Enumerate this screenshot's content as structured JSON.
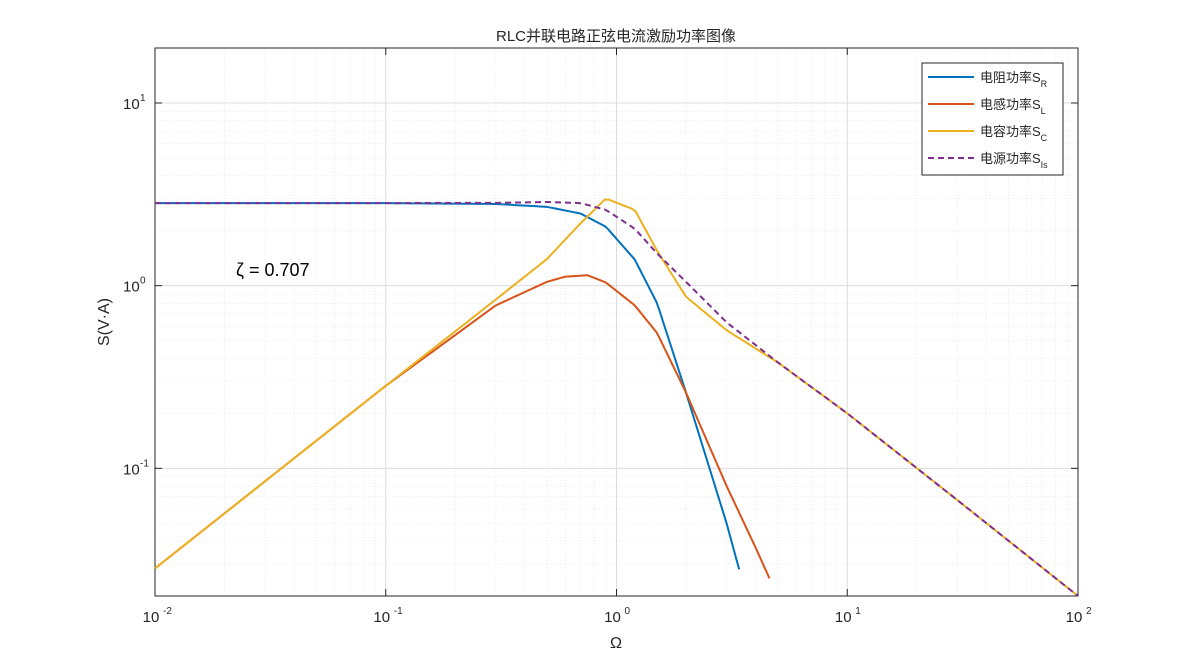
{
  "chart_data": {
    "type": "line",
    "title": "RLC并联电路正弦电流激励功率图像",
    "xlabel": "Ω",
    "ylabel": "S(V·A)",
    "xscale": "log",
    "yscale": "log",
    "xlim": [
      0.01,
      100
    ],
    "ylim": [
      0.02,
      20
    ],
    "grid": true,
    "legend_position": "top-right",
    "annotation": "ζ = 0.707",
    "xticks": [
      {
        "base": "10",
        "exp": "-2",
        "value": 0.01
      },
      {
        "base": "10",
        "exp": "-1",
        "value": 0.1
      },
      {
        "base": "10",
        "exp": "0",
        "value": 1
      },
      {
        "base": "10",
        "exp": "1",
        "value": 10
      },
      {
        "base": "10",
        "exp": "2",
        "value": 100
      }
    ],
    "yticks": [
      {
        "base": "10",
        "exp": "-1",
        "value": 0.1
      },
      {
        "base": "10",
        "exp": "0",
        "value": 1
      },
      {
        "base": "10",
        "exp": "1",
        "value": 10
      }
    ],
    "series": [
      {
        "name": "电阻功率",
        "sub": "R",
        "color": "#0072BD",
        "dash": "solid",
        "x": [
          0.01,
          0.1,
          0.3,
          0.5,
          0.7,
          0.9,
          1.2,
          1.5,
          2,
          2.5,
          3,
          3.4
        ],
        "y": [
          2.83,
          2.83,
          2.8,
          2.7,
          2.48,
          2.1,
          1.39,
          0.8,
          0.26,
          0.105,
          0.05,
          0.028
        ]
      },
      {
        "name": "电感功率",
        "sub": "L",
        "color": "#D95319",
        "dash": "solid",
        "x": [
          0.01,
          0.03,
          0.1,
          0.3,
          0.5,
          0.6,
          0.75,
          0.9,
          1.2,
          1.5,
          2,
          3,
          4,
          4.6
        ],
        "y": [
          0.0283,
          0.085,
          0.283,
          0.78,
          1.05,
          1.12,
          1.14,
          1.04,
          0.78,
          0.55,
          0.26,
          0.08,
          0.037,
          0.025
        ]
      },
      {
        "name": "电容功率",
        "sub": "C",
        "color": "#EDB120",
        "dash": "solid",
        "x": [
          0.01,
          0.03,
          0.1,
          0.3,
          0.5,
          0.7,
          0.9,
          1.2,
          1.5,
          2,
          3,
          5,
          10,
          30,
          100
        ],
        "y": [
          0.0283,
          0.085,
          0.283,
          0.84,
          1.4,
          2.2,
          3.0,
          2.6,
          1.55,
          0.87,
          0.57,
          0.38,
          0.2,
          0.067,
          0.02
        ]
      },
      {
        "name": "电源功率",
        "sub": "Is",
        "color": "#7E2F8E",
        "dash": "dashed",
        "x": [
          0.01,
          0.1,
          0.3,
          0.5,
          0.7,
          0.9,
          1.2,
          1.5,
          2,
          3,
          5,
          10,
          30,
          100
        ],
        "y": [
          2.83,
          2.83,
          2.84,
          2.87,
          2.83,
          2.6,
          2.05,
          1.5,
          1.05,
          0.63,
          0.38,
          0.2,
          0.067,
          0.02
        ]
      }
    ]
  }
}
